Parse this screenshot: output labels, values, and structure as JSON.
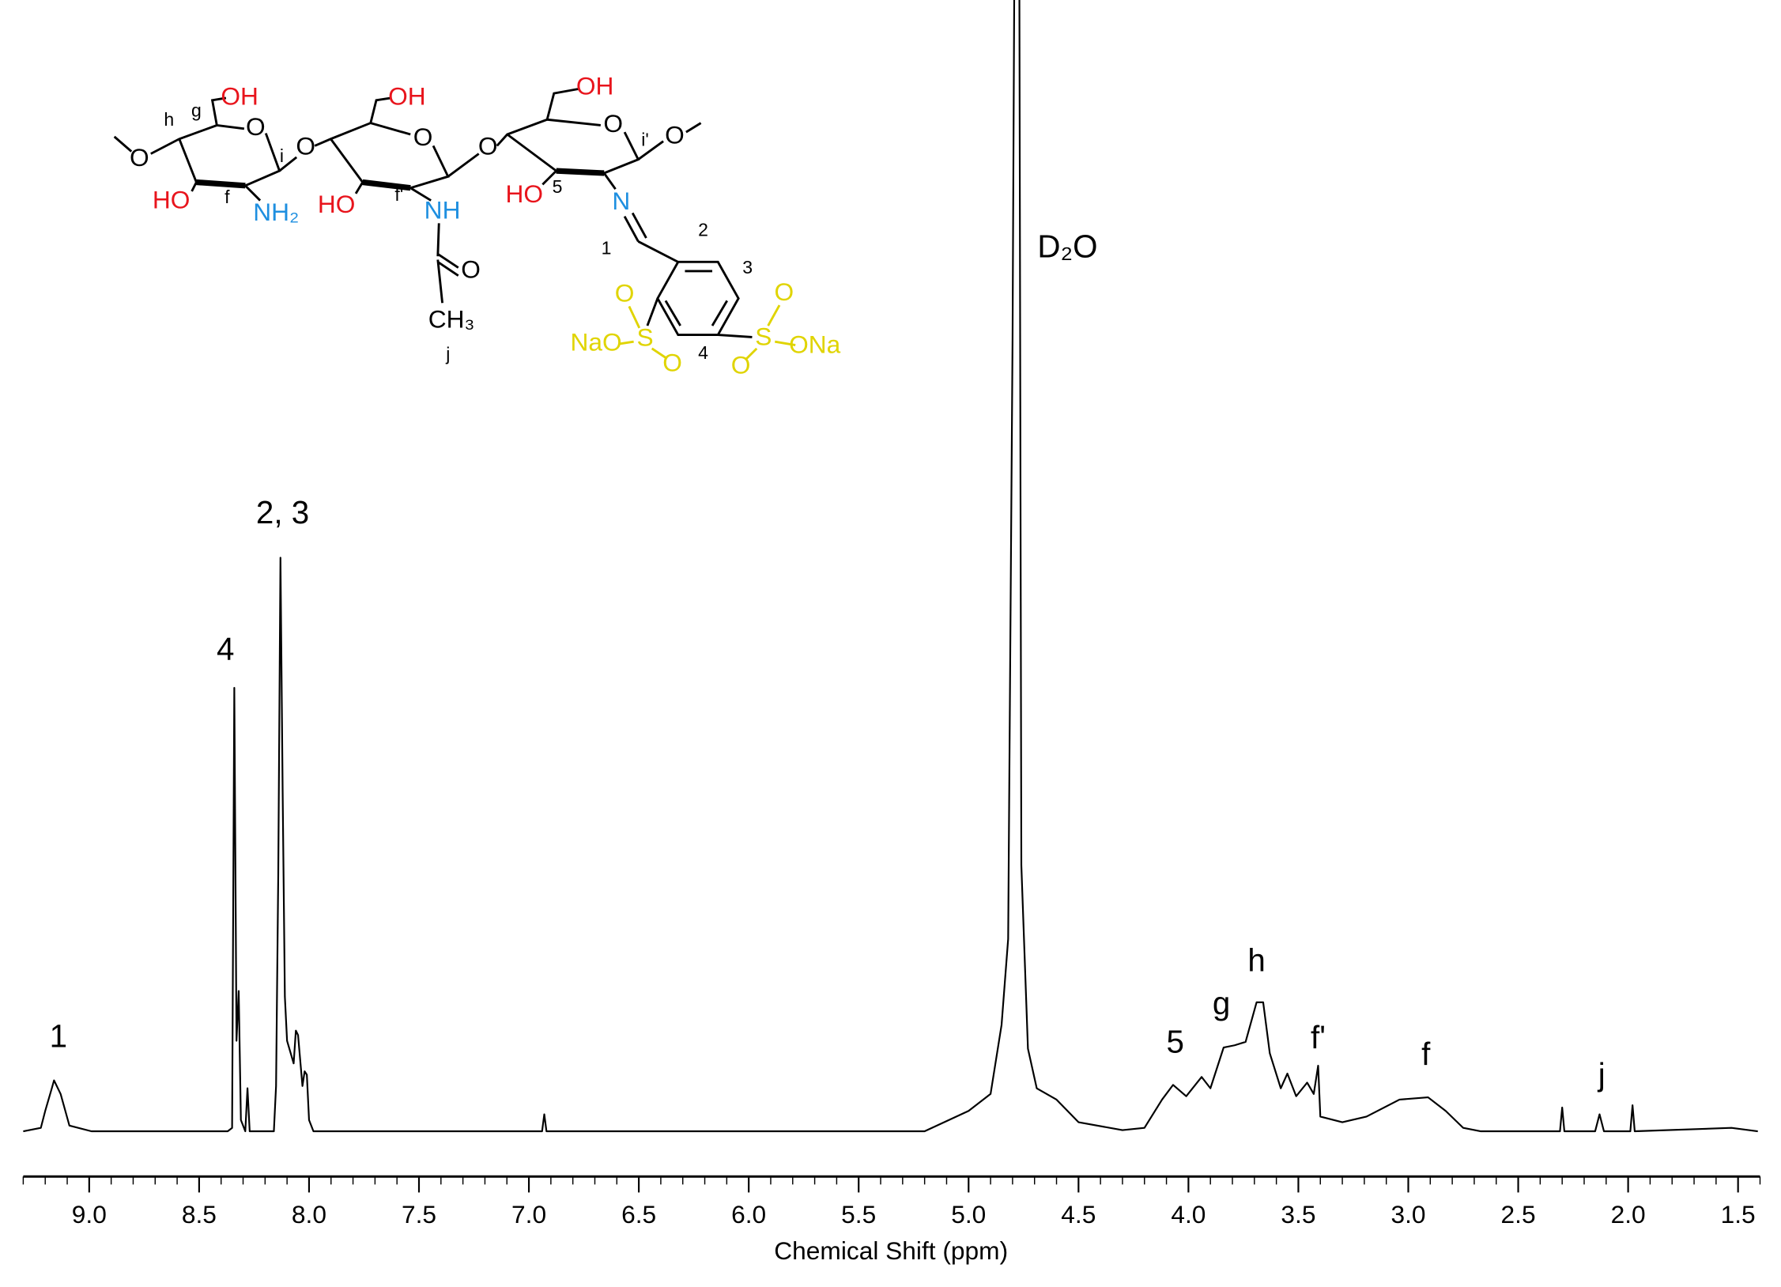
{
  "chart_data": {
    "type": "line",
    "xlabel": "Chemical Shift (ppm)",
    "color": "#000000",
    "x": [
      9.3,
      9.22,
      9.2,
      9.17,
      9.16,
      9.13,
      9.09,
      8.99,
      8.37,
      8.35,
      8.34,
      8.33,
      8.32,
      8.31,
      8.29,
      8.28,
      8.27,
      8.16,
      8.15,
      8.14,
      8.13,
      8.12,
      8.11,
      8.1,
      8.07,
      8.06,
      8.05,
      8.03,
      8.02,
      8.01,
      8.0,
      7.98,
      7.0,
      6.94,
      6.93,
      6.92,
      5.2,
      5.0,
      4.9,
      4.85,
      4.82,
      4.8,
      4.79,
      4.77,
      4.76,
      4.73,
      4.69,
      4.6,
      4.5,
      4.3,
      4.2,
      4.12,
      4.07,
      4.01,
      3.94,
      3.9,
      3.84,
      3.79,
      3.74,
      3.69,
      3.66,
      3.63,
      3.58,
      3.55,
      3.51,
      3.46,
      3.43,
      3.41,
      3.4,
      3.3,
      3.19,
      3.04,
      2.91,
      2.83,
      2.75,
      2.67,
      2.31,
      2.3,
      2.29,
      2.15,
      2.13,
      2.11,
      1.99,
      1.98,
      1.97,
      1.53,
      1.41
    ],
    "values": [
      0,
      0.3,
      1.8,
      3.8,
      4.5,
      3.3,
      0.5,
      0,
      0,
      0.3,
      39.2,
      8,
      12.4,
      1,
      0,
      3.8,
      0,
      0,
      4,
      22.7,
      50.7,
      30,
      11.9,
      8,
      6,
      8.9,
      8.5,
      4,
      5.3,
      5,
      1,
      0,
      0,
      0,
      1.5,
      0,
      0,
      1.8,
      3.3,
      9.4,
      17,
      70,
      110,
      110,
      23.5,
      7.3,
      3.8,
      2.8,
      0.8,
      0.1,
      0.3,
      2.8,
      4.1,
      3.1,
      4.8,
      3.8,
      7.4,
      7.6,
      7.9,
      11.4,
      11.4,
      6.9,
      3.8,
      5.1,
      3.1,
      4.3,
      3.3,
      5.8,
      1.3,
      0.8,
      1.3,
      2.8,
      3.0,
      1.8,
      0.3,
      0,
      0,
      2.1,
      0,
      0,
      1.5,
      0,
      0,
      2.3,
      0,
      0.3,
      0
    ],
    "xlim": [
      9.3,
      1.4
    ],
    "ylim": [
      -4,
      100
    ],
    "xticks": [
      {
        "value": 9,
        "label": "9.0"
      },
      8.5,
      {
        "value": 8,
        "label": "8.0"
      },
      7.5,
      {
        "value": 7,
        "label": "7.0"
      },
      6.5,
      {
        "value": 6,
        "label": "6.0"
      },
      5.5,
      {
        "value": 5,
        "label": "5.0"
      },
      4.5,
      {
        "value": 4,
        "label": "4.0"
      },
      3.5,
      {
        "value": 3,
        "label": "3.0"
      },
      2.5,
      {
        "value": 2,
        "label": "2.0"
      },
      1.5
    ],
    "xminorticks": [
      9.3,
      9.2,
      9.1,
      8.9,
      8.8,
      8.7,
      8.6,
      8.4,
      8.3,
      8.2,
      8.1,
      7.9,
      7.8,
      7.7,
      7.6,
      7.4,
      7.3,
      7.2,
      7.1,
      6.9,
      6.8,
      6.7,
      6.6,
      6.4,
      6.3,
      6.2,
      6.1,
      5.9,
      5.8,
      5.7,
      5.6,
      5.4,
      5.3,
      5.2,
      5.1,
      4.9,
      4.8,
      4.7,
      4.6,
      4.4,
      4.3,
      4.2,
      4.1,
      3.9,
      3.8,
      3.7,
      3.6,
      3.4,
      3.3,
      3.2,
      3.1,
      2.9,
      2.8,
      2.7,
      2.6,
      2.4,
      2.3,
      2.2,
      2.1,
      1.9,
      1.8,
      1.7,
      1.6,
      1.4
    ],
    "annotations": [
      {
        "text": "1",
        "x": 9.14,
        "y": 8.2
      },
      {
        "text": "4",
        "x": 8.38,
        "y": 42.4
      },
      {
        "text": "2, 3",
        "x": 8.12,
        "y": 54.5
      },
      {
        "text": "D₂O",
        "x": 4.55,
        "y": 78
      },
      {
        "text": "5",
        "x": 4.06,
        "y": 7.7
      },
      {
        "text": "g",
        "x": 3.85,
        "y": 11.1
      },
      {
        "text": "h",
        "x": 3.69,
        "y": 14.9
      },
      {
        "text": "f'",
        "x": 3.41,
        "y": 8.1
      },
      {
        "text": "f",
        "x": 2.92,
        "y": 6.6
      },
      {
        "text": "j",
        "x": 2.12,
        "y": 4.8
      }
    ],
    "structure_labels": [
      "O",
      "h",
      "g",
      "OH",
      "O",
      "i",
      "O",
      "HO",
      "f",
      "NH₂",
      "OH",
      "O",
      "O",
      "HO",
      "f'",
      "NH",
      "O",
      "CH₃",
      "j",
      "OH",
      "O",
      "i'",
      "O",
      "HO",
      "5",
      "N",
      "1",
      "2",
      "3",
      "O",
      "NaO",
      "S",
      "O",
      "4",
      "O",
      "S",
      "ONa",
      "O"
    ]
  }
}
